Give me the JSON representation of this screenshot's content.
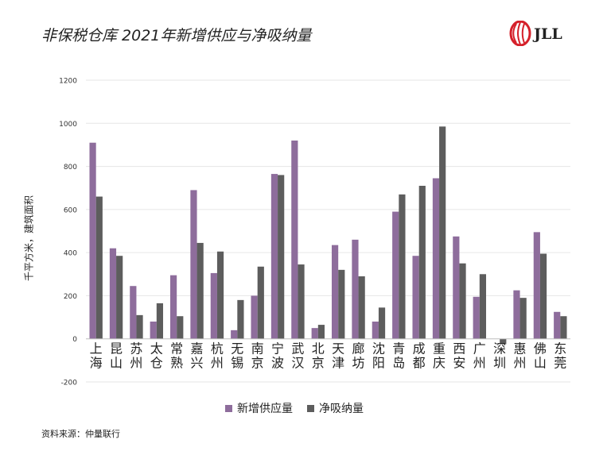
{
  "header": {
    "title": "非保税仓库 2021年新增供应与净吸纳量",
    "logo_text": "JLL"
  },
  "source_note": "资料来源：仲量联行",
  "colors": {
    "supply": "#8e6d9c",
    "absorption": "#5d5d5d",
    "grid": "#e6e6e6",
    "logo_red": "#d5202a"
  },
  "chart_data": {
    "type": "bar",
    "title": "非保税仓库 2021年新增供应与净吸纳量",
    "ylabel": "千平方米，建筑面积",
    "xlabel": "",
    "ylim": [
      -200,
      1200
    ],
    "yticks": [
      -200,
      0,
      200,
      400,
      600,
      800,
      1000,
      1200
    ],
    "grid": true,
    "legend_position": "bottom",
    "categories": [
      "上海",
      "昆山",
      "苏州",
      "太仓",
      "常熟",
      "嘉兴",
      "杭州",
      "无锡",
      "南京",
      "宁波",
      "武汉",
      "北京",
      "天津",
      "廊坊",
      "沈阳",
      "青岛",
      "成都",
      "重庆",
      "西安",
      "广州",
      "深圳",
      "惠州",
      "佛山",
      "东莞"
    ],
    "series": [
      {
        "name": "新增供应量",
        "values": [
          910,
          420,
          245,
          80,
          295,
          690,
          305,
          40,
          200,
          765,
          920,
          50,
          435,
          460,
          80,
          590,
          385,
          745,
          475,
          195,
          0,
          225,
          495,
          125
        ]
      },
      {
        "name": "净吸纳量",
        "values": [
          660,
          385,
          110,
          165,
          105,
          445,
          405,
          180,
          335,
          760,
          345,
          65,
          320,
          290,
          145,
          670,
          710,
          985,
          350,
          300,
          -25,
          190,
          395,
          105
        ]
      }
    ]
  }
}
